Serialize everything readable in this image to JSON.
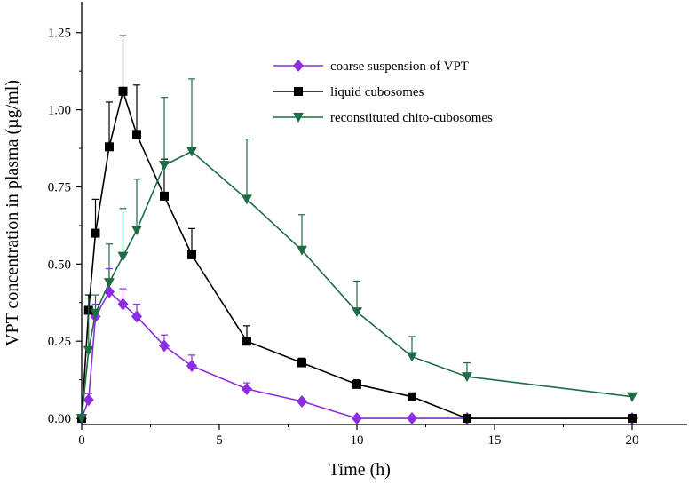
{
  "chart_data": {
    "type": "line",
    "title": "",
    "xlabel": "Time (h)",
    "ylabel": "VPT concentration in plasma (µg/ml)",
    "xlim": [
      0,
      22
    ],
    "ylim": [
      -0.02,
      1.35
    ],
    "xticks": [
      0,
      5,
      10,
      15,
      20
    ],
    "xtick_labels": [
      "0",
      "5",
      "10",
      "15",
      "20"
    ],
    "yticks": [
      0.0,
      0.25,
      0.5,
      0.75,
      1.0,
      1.25
    ],
    "ytick_labels": [
      "0.00",
      "0.25",
      "0.50",
      "0.75",
      "1.00",
      "1.25"
    ],
    "grid": false,
    "legend_position": "top-right",
    "series": [
      {
        "name": "coarse suspension of VPT",
        "color": "#8b2be2",
        "marker": "diamond",
        "x": [
          0,
          0.25,
          0.5,
          1,
          1.5,
          2,
          3,
          4,
          6,
          8,
          10,
          12,
          14,
          20
        ],
        "y": [
          0,
          0.06,
          0.33,
          0.41,
          0.37,
          0.33,
          0.235,
          0.17,
          0.095,
          0.055,
          0,
          0,
          0,
          0
        ],
        "err": [
          0,
          0.02,
          0.04,
          0.075,
          0.05,
          0.04,
          0.035,
          0.035,
          0.02,
          0,
          0,
          0,
          0,
          0
        ]
      },
      {
        "name": "liquid cubosomes",
        "color": "#000000",
        "marker": "square",
        "x": [
          0,
          0.25,
          0.5,
          1,
          1.5,
          2,
          3,
          4,
          6,
          8,
          10,
          12,
          14,
          20
        ],
        "y": [
          0,
          0.35,
          0.6,
          0.88,
          1.06,
          0.92,
          0.72,
          0.53,
          0.25,
          0.18,
          0.11,
          0.07,
          0,
          0
        ],
        "err": [
          0,
          0.05,
          0.11,
          0.145,
          0.18,
          0.16,
          0.12,
          0.085,
          0.05,
          0.015,
          0.015,
          0,
          0,
          0
        ]
      },
      {
        "name": "reconstituted chito-cubosomes",
        "color": "#1e6b45",
        "marker": "triangle-down",
        "x": [
          0,
          0.25,
          0.5,
          1,
          1.5,
          2,
          3,
          4,
          6,
          8,
          10,
          12,
          14,
          20
        ],
        "y": [
          0,
          0.22,
          0.34,
          0.44,
          0.525,
          0.61,
          0.82,
          0.865,
          0.71,
          0.545,
          0.345,
          0.2,
          0.135,
          0.07
        ],
        "err": [
          0,
          0.17,
          0.06,
          0.125,
          0.155,
          0.165,
          0.22,
          0.235,
          0.195,
          0.115,
          0.1,
          0.065,
          0.045,
          0.01
        ]
      }
    ]
  }
}
